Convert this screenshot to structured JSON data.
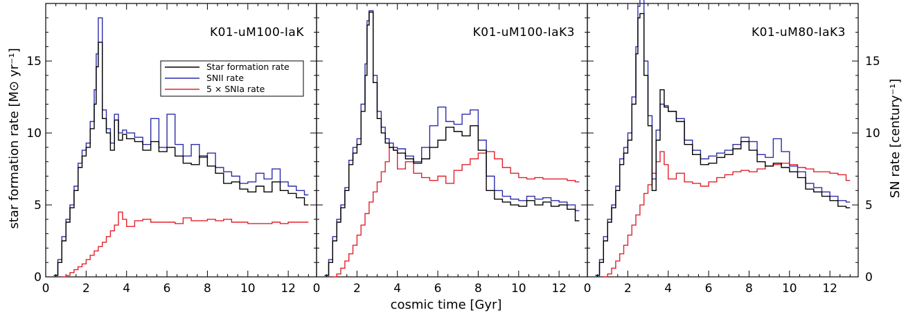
{
  "colors": {
    "sfr": "#000000",
    "snii": "#2b2ba8",
    "snia": "#e0202a"
  },
  "axes": {
    "xlabel": "cosmic time [Gyr]",
    "ylabel_left": "star formation rate [M⊙ yr⁻¹]",
    "ylabel_right": "SN rate [century⁻¹]",
    "x_ticks": [
      0,
      2,
      4,
      6,
      8,
      10,
      12
    ],
    "x_ticklabels": [
      "0",
      "2",
      "4",
      "6",
      "8",
      "10",
      "12"
    ],
    "y_ticks": [
      0,
      5,
      10,
      15
    ],
    "y_ticklabels": [
      "0",
      "5",
      "10",
      "15"
    ]
  },
  "legend": {
    "entries": [
      "Star formation rate",
      "SNII rate",
      "5 × SNIa rate"
    ]
  },
  "chart_data": [
    {
      "type": "line",
      "title": "K01-uM100-IaK",
      "xlim": [
        0,
        13.4
      ],
      "ylim": [
        0,
        19
      ],
      "series": [
        {
          "name": "Star formation rate",
          "x": [
            0.4,
            0.6,
            0.8,
            1.0,
            1.2,
            1.4,
            1.6,
            1.8,
            2.0,
            2.2,
            2.4,
            2.5,
            2.6,
            2.8,
            3.0,
            3.2,
            3.4,
            3.6,
            3.8,
            4.0,
            4.4,
            4.8,
            5.2,
            5.6,
            6.0,
            6.4,
            6.8,
            7.2,
            7.6,
            8.0,
            8.4,
            8.8,
            9.2,
            9.6,
            10.0,
            10.4,
            10.8,
            11.2,
            11.6,
            12.0,
            12.4,
            12.8
          ],
          "y": [
            0.1,
            1.0,
            2.5,
            3.8,
            4.8,
            6.0,
            7.6,
            8.4,
            9.0,
            10.3,
            12.0,
            14.6,
            16.3,
            11.0,
            10.0,
            8.8,
            10.9,
            9.5,
            9.9,
            9.6,
            9.4,
            8.8,
            9.4,
            8.7,
            9.0,
            8.4,
            7.9,
            7.8,
            8.4,
            7.7,
            7.2,
            6.5,
            6.6,
            6.1,
            5.9,
            6.3,
            5.9,
            6.6,
            6.0,
            5.8,
            5.5,
            5.0
          ]
        },
        {
          "name": "SNII rate",
          "x": [
            0.4,
            0.6,
            0.8,
            1.0,
            1.2,
            1.4,
            1.6,
            1.8,
            2.0,
            2.2,
            2.4,
            2.5,
            2.6,
            2.8,
            3.0,
            3.2,
            3.4,
            3.6,
            3.8,
            4.0,
            4.4,
            4.8,
            5.2,
            5.6,
            6.0,
            6.4,
            6.8,
            7.2,
            7.6,
            8.0,
            8.4,
            8.8,
            9.2,
            9.6,
            10.0,
            10.4,
            10.8,
            11.2,
            11.6,
            12.0,
            12.4,
            12.8
          ],
          "y": [
            0.1,
            1.2,
            2.8,
            4.0,
            5.0,
            6.3,
            7.9,
            8.8,
            9.3,
            10.8,
            13.0,
            15.5,
            18.0,
            11.6,
            10.3,
            9.3,
            11.3,
            10.0,
            10.2,
            10.0,
            9.7,
            9.2,
            11.0,
            9.0,
            11.3,
            9.2,
            8.4,
            9.2,
            8.3,
            8.6,
            7.6,
            7.3,
            7.0,
            6.5,
            6.6,
            7.2,
            6.8,
            7.5,
            6.6,
            6.3,
            6.0,
            5.7
          ]
        },
        {
          "name": "5 × SNIa rate",
          "x": [
            0.8,
            1.0,
            1.2,
            1.4,
            1.6,
            1.8,
            2.0,
            2.2,
            2.4,
            2.6,
            2.8,
            3.0,
            3.2,
            3.4,
            3.6,
            3.8,
            4.0,
            4.4,
            4.8,
            5.2,
            5.6,
            6.0,
            6.4,
            6.8,
            7.2,
            7.6,
            8.0,
            8.4,
            8.8,
            9.2,
            9.6,
            10.0,
            10.4,
            10.8,
            11.2,
            11.6,
            12.0,
            12.4,
            12.8
          ],
          "y": [
            0.0,
            0.1,
            0.3,
            0.5,
            0.7,
            0.9,
            1.2,
            1.5,
            1.8,
            2.1,
            2.4,
            2.8,
            3.2,
            3.6,
            4.5,
            4.0,
            3.5,
            3.9,
            4.0,
            3.8,
            3.8,
            3.8,
            3.7,
            4.1,
            3.9,
            3.9,
            4.0,
            3.9,
            4.0,
            3.8,
            3.8,
            3.7,
            3.7,
            3.7,
            3.8,
            3.7,
            3.8,
            3.8,
            3.8
          ]
        }
      ]
    },
    {
      "type": "line",
      "title": "K01-uM100-IaK3",
      "xlim": [
        0,
        13.4
      ],
      "ylim": [
        0,
        19
      ],
      "series": [
        {
          "name": "Star formation rate",
          "x": [
            0.4,
            0.6,
            0.8,
            1.0,
            1.2,
            1.4,
            1.6,
            1.8,
            2.0,
            2.2,
            2.4,
            2.5,
            2.6,
            2.8,
            3.0,
            3.2,
            3.4,
            3.6,
            3.8,
            4.0,
            4.4,
            4.8,
            5.2,
            5.6,
            6.0,
            6.4,
            6.8,
            7.2,
            7.6,
            8.0,
            8.4,
            8.8,
            9.2,
            9.6,
            10.0,
            10.4,
            10.8,
            11.2,
            11.6,
            12.0,
            12.4,
            12.8
          ],
          "y": [
            0.1,
            1.0,
            2.5,
            3.8,
            4.8,
            6.0,
            7.8,
            8.6,
            9.2,
            11.5,
            14.0,
            17.5,
            18.4,
            13.5,
            11.0,
            10.0,
            9.3,
            9.0,
            8.8,
            8.6,
            8.2,
            7.9,
            8.2,
            9.0,
            9.5,
            10.4,
            10.1,
            9.8,
            10.5,
            8.8,
            6.0,
            5.4,
            5.2,
            5.0,
            4.9,
            5.3,
            5.0,
            5.2,
            4.9,
            5.0,
            4.7,
            3.9
          ]
        },
        {
          "name": "SNII rate",
          "x": [
            0.4,
            0.6,
            0.8,
            1.0,
            1.2,
            1.4,
            1.6,
            1.8,
            2.0,
            2.2,
            2.4,
            2.5,
            2.6,
            2.8,
            3.0,
            3.2,
            3.4,
            3.6,
            3.8,
            4.0,
            4.4,
            4.8,
            5.2,
            5.6,
            6.0,
            6.4,
            6.8,
            7.2,
            7.6,
            8.0,
            8.4,
            8.8,
            9.2,
            9.6,
            10.0,
            10.4,
            10.8,
            11.2,
            11.6,
            12.0,
            12.4,
            12.8
          ],
          "y": [
            0.1,
            1.2,
            2.8,
            4.0,
            5.0,
            6.2,
            8.1,
            9.0,
            9.6,
            12.0,
            14.8,
            17.8,
            18.5,
            14.0,
            11.5,
            10.4,
            9.6,
            9.3,
            9.0,
            8.9,
            8.4,
            8.0,
            9.0,
            10.5,
            11.8,
            10.8,
            10.6,
            11.3,
            11.6,
            9.5,
            7.0,
            6.0,
            5.6,
            5.4,
            5.3,
            5.6,
            5.4,
            5.5,
            5.3,
            5.2,
            5.0,
            4.6
          ]
        },
        {
          "name": "5 × SNIa rate",
          "x": [
            0.8,
            1.0,
            1.2,
            1.4,
            1.6,
            1.8,
            2.0,
            2.2,
            2.4,
            2.6,
            2.8,
            3.0,
            3.2,
            3.4,
            3.6,
            3.8,
            4.0,
            4.4,
            4.8,
            5.2,
            5.6,
            6.0,
            6.4,
            6.8,
            7.2,
            7.6,
            8.0,
            8.4,
            8.8,
            9.2,
            9.6,
            10.0,
            10.4,
            10.8,
            11.2,
            11.6,
            12.0,
            12.4,
            12.8
          ],
          "y": [
            0.0,
            0.2,
            0.6,
            1.1,
            1.6,
            2.2,
            2.9,
            3.6,
            4.4,
            5.2,
            5.9,
            6.6,
            7.3,
            8.0,
            9.0,
            8.8,
            7.5,
            8.0,
            7.2,
            6.9,
            6.7,
            7.0,
            6.5,
            7.4,
            7.8,
            8.2,
            8.6,
            8.7,
            8.2,
            7.6,
            7.2,
            6.9,
            6.8,
            6.9,
            6.8,
            6.8,
            6.8,
            6.7,
            6.6
          ]
        }
      ]
    },
    {
      "type": "line",
      "title": "K01-uM80-IaK3",
      "xlim": [
        0,
        13.4
      ],
      "ylim": [
        0,
        19
      ],
      "series": [
        {
          "name": "Star formation rate",
          "x": [
            0.4,
            0.6,
            0.8,
            1.0,
            1.2,
            1.4,
            1.6,
            1.8,
            2.0,
            2.2,
            2.4,
            2.5,
            2.6,
            2.8,
            3.0,
            3.2,
            3.4,
            3.6,
            3.8,
            4.0,
            4.4,
            4.8,
            5.2,
            5.6,
            6.0,
            6.4,
            6.8,
            7.2,
            7.6,
            8.0,
            8.4,
            8.8,
            9.2,
            9.6,
            10.0,
            10.4,
            10.8,
            11.2,
            11.6,
            12.0,
            12.4,
            12.8
          ],
          "y": [
            0.1,
            1.0,
            2.5,
            3.8,
            4.8,
            6.0,
            7.8,
            8.6,
            9.5,
            12.0,
            15.5,
            18.0,
            18.3,
            14.0,
            10.5,
            6.0,
            9.5,
            13.0,
            11.8,
            11.5,
            10.8,
            9.2,
            8.5,
            7.8,
            7.9,
            8.3,
            8.5,
            8.9,
            9.4,
            8.8,
            8.0,
            7.7,
            7.9,
            7.6,
            7.3,
            6.9,
            6.1,
            5.9,
            5.6,
            5.3,
            4.9,
            4.8
          ]
        },
        {
          "name": "SNII rate",
          "x": [
            0.4,
            0.6,
            0.8,
            1.0,
            1.2,
            1.4,
            1.6,
            1.8,
            2.0,
            2.2,
            2.4,
            2.5,
            2.6,
            2.8,
            3.0,
            3.2,
            3.4,
            3.6,
            3.8,
            4.0,
            4.4,
            4.8,
            5.2,
            5.6,
            6.0,
            6.4,
            6.8,
            7.2,
            7.6,
            8.0,
            8.4,
            8.8,
            9.2,
            9.6,
            10.0,
            10.4,
            10.8,
            11.2,
            11.6,
            12.0,
            12.4,
            12.8
          ],
          "y": [
            0.1,
            1.2,
            2.8,
            4.0,
            5.0,
            6.3,
            8.2,
            9.0,
            10.0,
            12.5,
            16.0,
            18.8,
            19.5,
            15.0,
            11.2,
            6.8,
            10.2,
            12.0,
            11.9,
            11.5,
            11.0,
            9.5,
            8.8,
            8.2,
            8.4,
            8.6,
            8.8,
            9.2,
            9.7,
            9.4,
            8.5,
            8.3,
            9.6,
            8.7,
            7.7,
            7.3,
            6.5,
            6.2,
            5.9,
            5.6,
            5.3,
            5.2
          ]
        },
        {
          "name": "5 × SNIa rate",
          "x": [
            0.8,
            1.0,
            1.2,
            1.4,
            1.6,
            1.8,
            2.0,
            2.2,
            2.4,
            2.6,
            2.8,
            3.0,
            3.2,
            3.4,
            3.6,
            3.8,
            4.0,
            4.4,
            4.8,
            5.2,
            5.6,
            6.0,
            6.4,
            6.8,
            7.2,
            7.6,
            8.0,
            8.4,
            8.8,
            9.2,
            9.6,
            10.0,
            10.4,
            10.8,
            11.2,
            11.6,
            12.0,
            12.4,
            12.8
          ],
          "y": [
            0.0,
            0.2,
            0.6,
            1.1,
            1.6,
            2.2,
            2.9,
            3.6,
            4.3,
            5.0,
            5.8,
            6.4,
            7.2,
            8.0,
            8.7,
            7.8,
            6.8,
            7.2,
            6.6,
            6.5,
            6.3,
            6.6,
            6.9,
            7.1,
            7.3,
            7.4,
            7.3,
            7.5,
            7.7,
            7.8,
            7.9,
            7.8,
            7.6,
            7.5,
            7.3,
            7.3,
            7.2,
            7.1,
            6.7
          ]
        }
      ]
    }
  ]
}
